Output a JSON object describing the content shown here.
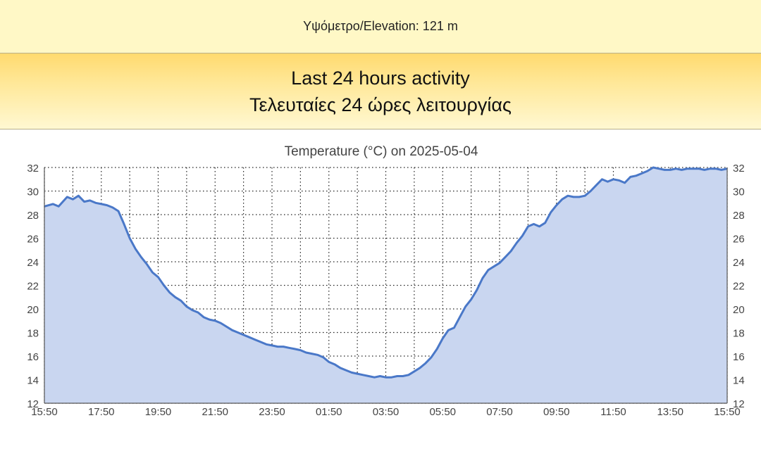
{
  "header": {
    "elevation_text": "Υψόμετρο/Elevation: 121 m"
  },
  "banner": {
    "line1": "Last 24 hours activity",
    "line2": "Τελευταίες 24 ώρες λειτουργίας"
  },
  "colors": {
    "line": "#4a78c8",
    "fill": "#c9d6f0",
    "grid": "#222222",
    "text": "#444444"
  },
  "chart_data": {
    "type": "area",
    "title": "Temperature (°C) on 2025-05-04",
    "ylim": [
      12,
      32
    ],
    "yticks": [
      12,
      14,
      16,
      18,
      20,
      22,
      24,
      26,
      28,
      30,
      32
    ],
    "xtick_labels": [
      "15:50",
      "17:50",
      "19:50",
      "21:50",
      "23:50",
      "01:50",
      "03:50",
      "05:50",
      "07:50",
      "09:50",
      "11:50",
      "13:50",
      "15:50"
    ],
    "grid": true,
    "minor_vertical_grid": true,
    "dual_y_axis": true,
    "series": [
      {
        "x_hours_from_start": [
          0,
          0.3,
          0.5,
          0.8,
          1.0,
          1.2,
          1.4,
          1.6,
          1.8,
          2.0,
          2.2,
          2.4,
          2.6,
          2.8,
          3.0,
          3.2,
          3.4,
          3.6,
          3.8,
          4.0,
          4.2,
          4.4,
          4.6,
          4.8,
          5.0,
          5.2,
          5.4,
          5.6,
          5.8,
          6.0,
          6.2,
          6.4,
          6.6,
          6.8,
          7.0,
          7.2,
          7.4,
          7.6,
          7.8,
          8.0,
          8.2,
          8.4,
          8.6,
          8.8,
          9.0,
          9.2,
          9.4,
          9.6,
          9.8,
          10.0,
          10.2,
          10.4,
          10.6,
          10.8,
          11.0,
          11.2,
          11.4,
          11.6,
          11.8,
          12.0,
          12.2,
          12.4,
          12.6,
          12.8,
          13.0,
          13.2,
          13.4,
          13.6,
          13.8,
          14.0,
          14.2,
          14.4,
          14.6,
          14.8,
          15.0,
          15.2,
          15.4,
          15.6,
          15.8,
          16.0,
          16.2,
          16.4,
          16.6,
          16.8,
          17.0,
          17.2,
          17.4,
          17.6,
          17.8,
          18.0,
          18.2,
          18.4,
          18.6,
          18.8,
          19.0,
          19.2,
          19.4,
          19.6,
          19.8,
          20.0,
          20.2,
          20.4,
          20.6,
          20.8,
          21.0,
          21.2,
          21.4,
          21.6,
          21.8,
          22.0,
          22.2,
          22.4,
          22.6,
          22.8,
          23.0,
          23.2,
          23.4,
          23.6,
          23.8,
          24.0
        ],
        "values": [
          28.7,
          28.9,
          28.7,
          29.5,
          29.3,
          29.6,
          29.1,
          29.2,
          29.0,
          28.9,
          28.8,
          28.6,
          28.3,
          27.2,
          26.0,
          25.1,
          24.4,
          23.8,
          23.1,
          22.7,
          22.0,
          21.4,
          21.0,
          20.7,
          20.2,
          19.9,
          19.7,
          19.3,
          19.1,
          19.0,
          18.8,
          18.5,
          18.2,
          18.0,
          17.8,
          17.6,
          17.4,
          17.2,
          17.0,
          16.9,
          16.8,
          16.8,
          16.7,
          16.6,
          16.5,
          16.3,
          16.2,
          16.1,
          15.9,
          15.5,
          15.3,
          15.0,
          14.8,
          14.6,
          14.5,
          14.4,
          14.3,
          14.2,
          14.3,
          14.2,
          14.2,
          14.3,
          14.3,
          14.4,
          14.7,
          15.0,
          15.4,
          15.9,
          16.6,
          17.5,
          18.2,
          18.4,
          19.3,
          20.2,
          20.8,
          21.6,
          22.6,
          23.3,
          23.6,
          23.9,
          24.4,
          24.9,
          25.6,
          26.2,
          27.0,
          27.2,
          27.0,
          27.3,
          28.2,
          28.8,
          29.3,
          29.6,
          29.5,
          29.5,
          29.6,
          30.0,
          30.5,
          31.0,
          30.8,
          31.0,
          30.9,
          30.7,
          31.2,
          31.3,
          31.5,
          31.7,
          32.0,
          31.9,
          31.8,
          31.8,
          31.9,
          31.8,
          31.9,
          31.9,
          31.9,
          31.8,
          31.9,
          31.9,
          31.8,
          31.9,
          31.8
        ]
      }
    ]
  }
}
